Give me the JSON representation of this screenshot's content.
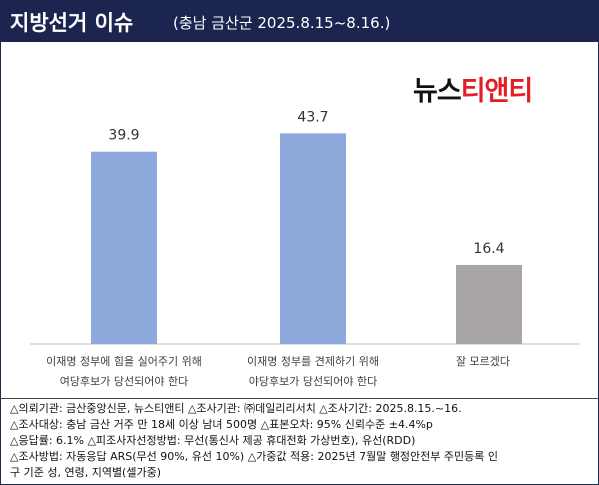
{
  "header": {
    "title": "지방선거 이슈",
    "subtitle": "(충남 금산군 2025.8.15~8.16.)"
  },
  "logo": {
    "part1": "뉴스",
    "part2": "티앤티"
  },
  "chart_data": {
    "type": "bar",
    "categories": [
      [
        "이재명 정부에 힘을 실어주기 위해",
        "여당후보가 당선되어야 한다"
      ],
      [
        "이재명 정부를 견제하기 위해",
        "야당후보가 당선되어야 한다"
      ],
      [
        "잘 모르겠다"
      ]
    ],
    "values": [
      39.9,
      43.7,
      16.4
    ],
    "value_labels": [
      "39.9",
      "43.7",
      "16.4"
    ],
    "colors": [
      "#8eaadc",
      "#8eaadc",
      "#aaa5a5"
    ],
    "ylim": [
      0,
      50
    ],
    "grid": false
  },
  "notes": [
    "△의뢰기관: 금산중앙신문, 뉴스티앤티 △조사기관: ㈜데일리리서치 △조사기간: 2025.8.15.~16.",
    "△조사대상: 충남 금산 거주 만 18세 이상 남녀 500명 △표본오차: 95% 신뢰수준 ±4.4%p",
    "△응답률: 6.1% △피조사자선정방법: 무선(통신사 제공 휴대전화 가상번호), 유선(RDD)",
    "△조사방법: 자동응답 ARS(무선 90%, 유선 10%) △가중값 적용: 2025년 7월말 행정안전부 주민등록 인",
    "구 기준 성, 연령, 지역별(셀가중)"
  ]
}
